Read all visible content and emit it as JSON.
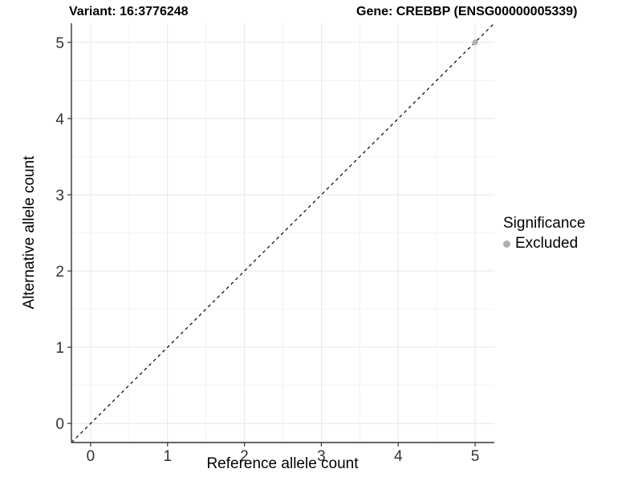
{
  "chart_data": {
    "type": "scatter",
    "titles": {
      "left": "Variant: 16:3776248",
      "right": "Gene: CREBBP (ENSG00000005339)"
    },
    "xlabel": "Reference allele count",
    "ylabel": "Alternative allele count",
    "xlim": [
      -0.25,
      5.25
    ],
    "ylim": [
      -0.25,
      5.25
    ],
    "x_ticks": [
      0,
      1,
      2,
      3,
      4,
      5
    ],
    "y_ticks": [
      0,
      1,
      2,
      3,
      4,
      5
    ],
    "grid": "major and minor gridlines, light gray on white panel",
    "legend": {
      "title": "Significance",
      "position": "right"
    },
    "series": [
      {
        "name": "Excluded",
        "color": "#b0b0b0",
        "points": [
          [
            5,
            5
          ]
        ]
      }
    ],
    "lines": [
      {
        "type": "identity",
        "from": [
          -0.25,
          -0.25
        ],
        "to": [
          5.25,
          5.25
        ],
        "style": "dashed",
        "color": "#000000"
      }
    ]
  },
  "style": {
    "background": "#ffffff",
    "grid_major": "#e6e6e6",
    "grid_minor": "#f2f2f2",
    "axis_line": "#333333",
    "tick_text": "#333333",
    "title_text": "#000000"
  }
}
